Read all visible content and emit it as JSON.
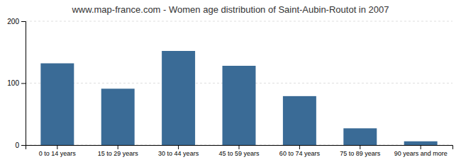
{
  "chart_data": {
    "type": "bar",
    "title": "www.map-france.com - Women age distribution of Saint-Aubin-Routot in 2007",
    "categories": [
      "0 to 14 years",
      "15 to 29 years",
      "30 to 44 years",
      "45 to 59 years",
      "60 to 74 years",
      "75 to 89 years",
      "90 years and more"
    ],
    "values": [
      132,
      91,
      152,
      128,
      79,
      27,
      6
    ],
    "color": "#3a6b96",
    "ylim": [
      0,
      200
    ],
    "yticks": [
      0,
      100,
      200
    ],
    "grid": true
  }
}
